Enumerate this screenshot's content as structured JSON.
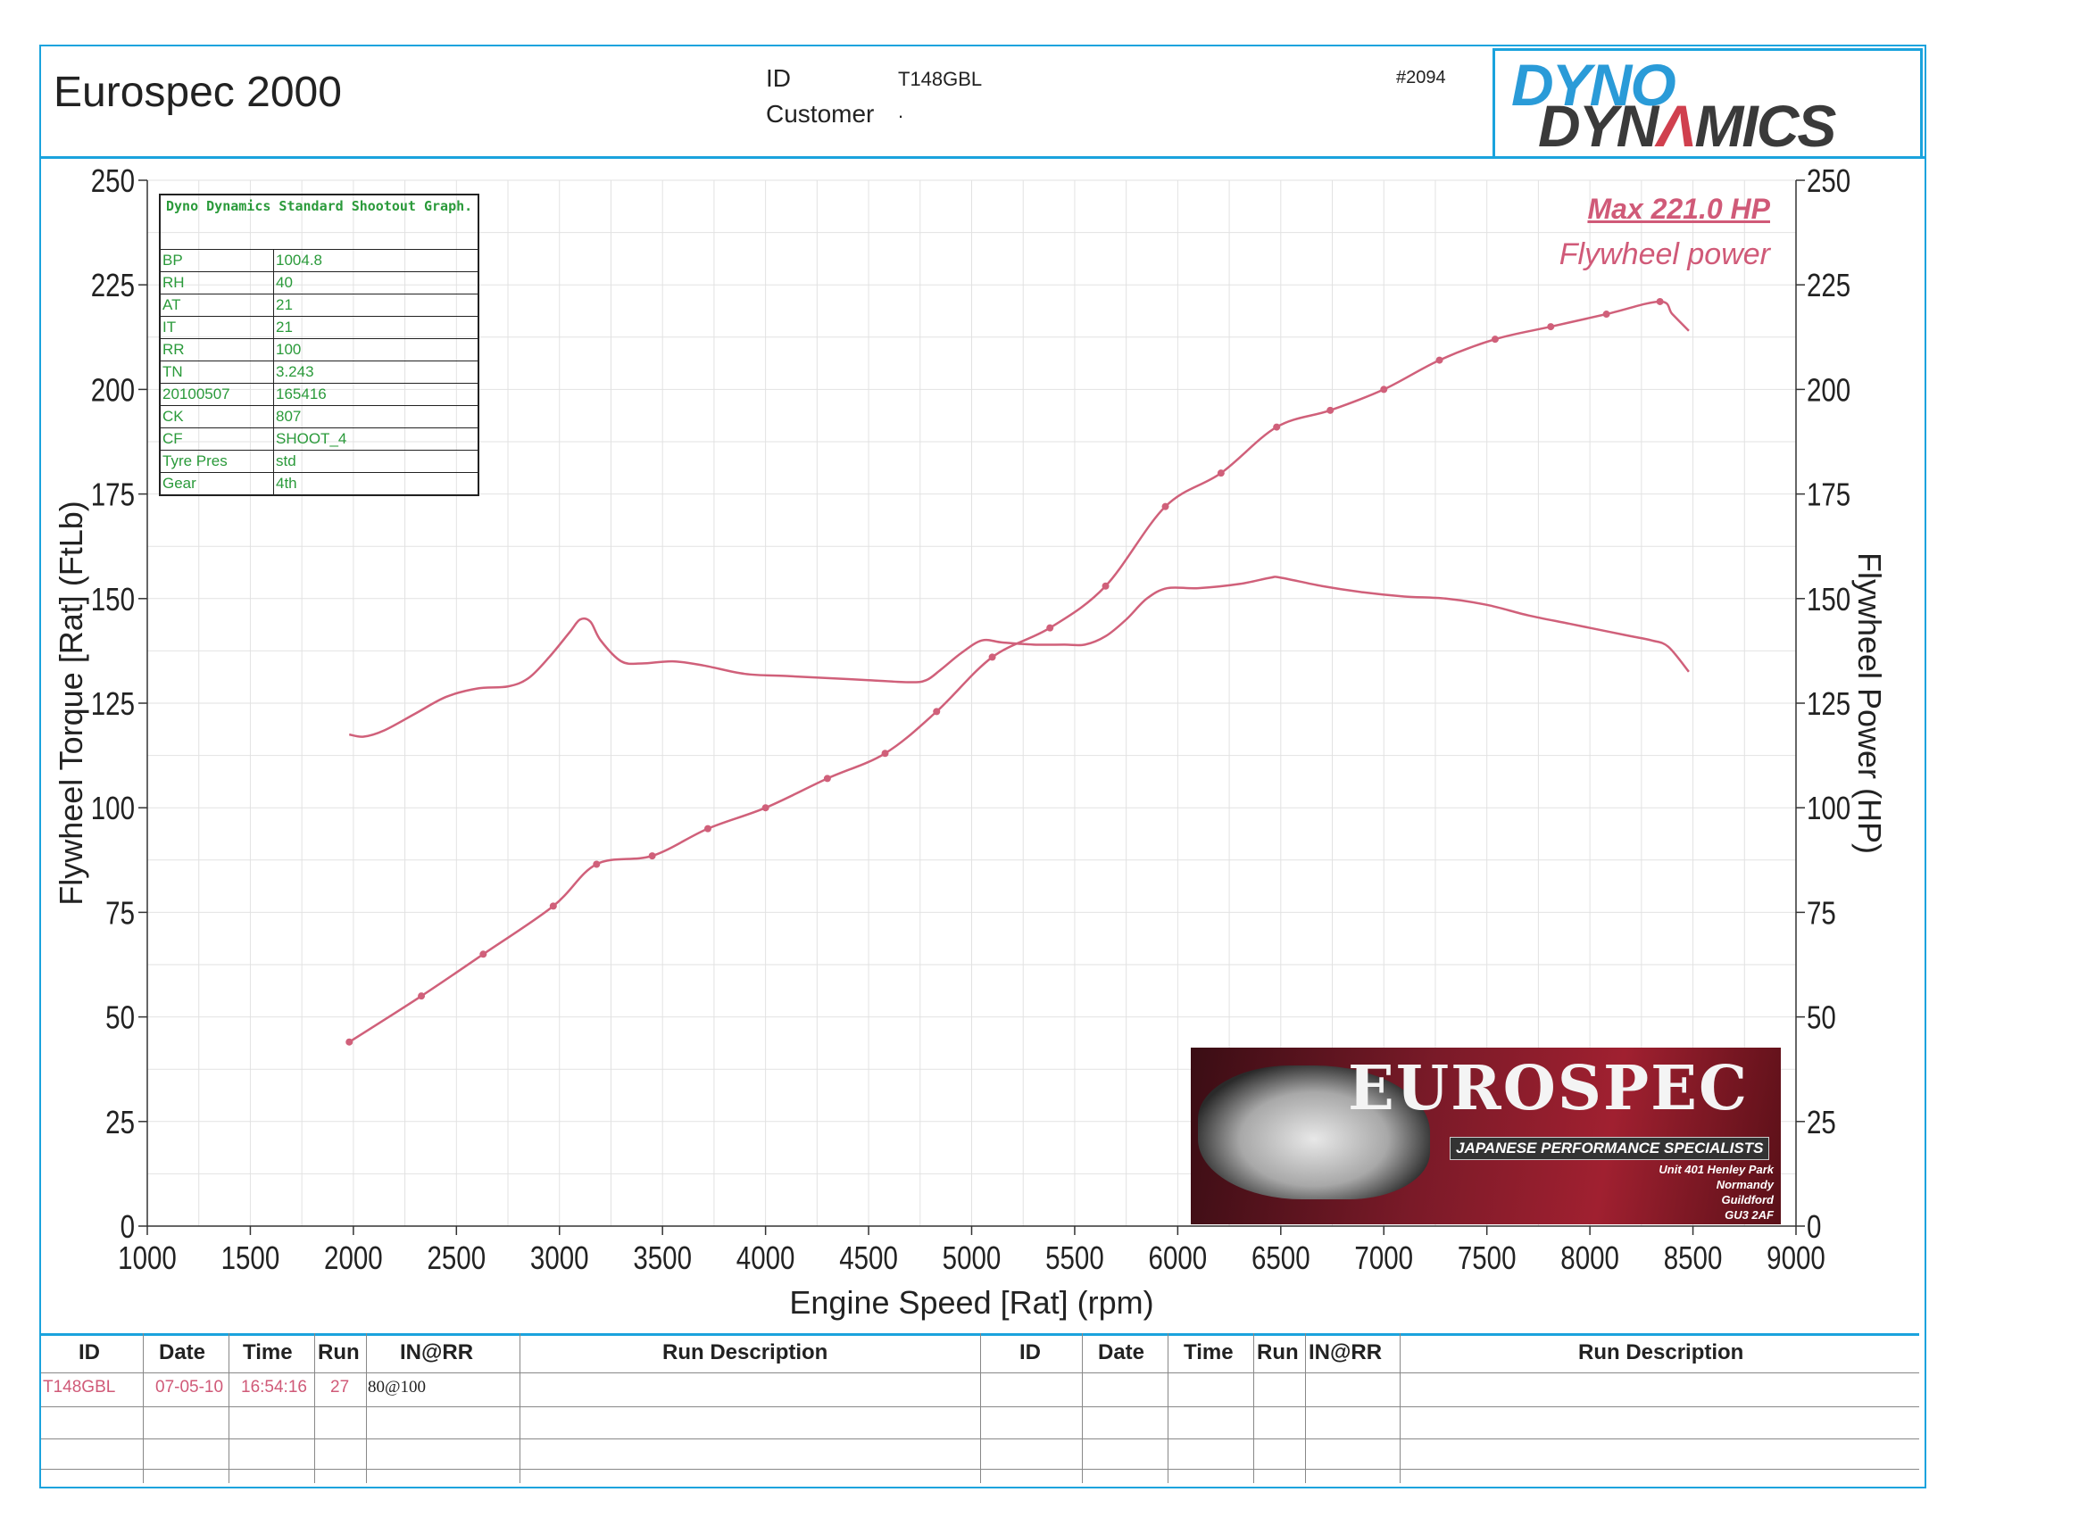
{
  "header": {
    "title": "Eurospec 2000",
    "id_label": "ID",
    "id_value": "T148GBL",
    "customer_label": "Customer",
    "customer_value": ".",
    "run_number": "#2094",
    "logo_line1": "DYNO",
    "logo_line2_a": "DYN",
    "logo_line2_b": "MICS"
  },
  "info_table": {
    "caption": "Dyno Dynamics Standard Shootout Graph.",
    "rows": [
      [
        "BP",
        "1004.8"
      ],
      [
        "RH",
        "40"
      ],
      [
        "AT",
        "21"
      ],
      [
        "IT",
        "21"
      ],
      [
        "RR",
        "100"
      ],
      [
        "TN",
        "3.243"
      ],
      [
        "20100507",
        "165416"
      ],
      [
        "CK",
        "807"
      ],
      [
        "CF",
        "SHOOT_4"
      ],
      [
        "Tyre Pres",
        "std"
      ],
      [
        "Gear",
        "4th"
      ]
    ]
  },
  "annotations": {
    "max": "Max 221.0 HP",
    "series_label": "Flywheel power"
  },
  "banner": {
    "brand": "EUROSPEC",
    "tagline": "JAPANESE PERFORMANCE SPECIALISTS",
    "address": [
      "Unit 401 Henley Park",
      "Normandy",
      "Guildford",
      "GU3 2AF"
    ]
  },
  "runs_table": {
    "headers": [
      "ID",
      "Date",
      "Time",
      "Run",
      "IN@RR",
      "Run Description",
      "ID",
      "Date",
      "Time",
      "Run",
      "IN@RR",
      "Run Description"
    ],
    "row": [
      "T148GBL",
      "07-05-10",
      "16:54:16",
      "27",
      "80@100",
      ""
    ]
  },
  "colors": {
    "curve": "#d0607a",
    "frame": "#1aa3dd",
    "grid": "#e2e2e2"
  },
  "chart_data": {
    "type": "line",
    "xlabel": "Engine Speed [Rat] (rpm)",
    "ylabel": "Flywheel Torque [Rat] (FtLb)",
    "y2label": "Flywheel Power (HP)",
    "xlim": [
      1000,
      9000
    ],
    "ylim": [
      0,
      250
    ],
    "y2lim": [
      0,
      250
    ],
    "xticks": [
      1000,
      1500,
      2000,
      2500,
      3000,
      3500,
      4000,
      4500,
      5000,
      5500,
      6000,
      6500,
      7000,
      7500,
      8000,
      8500,
      9000
    ],
    "yticks": [
      0,
      25,
      50,
      75,
      100,
      125,
      150,
      175,
      200,
      225,
      250
    ],
    "grid": true,
    "series": [
      {
        "name": "Flywheel Torque",
        "axis": "left",
        "markers": false,
        "x": [
          1980,
          2050,
          2150,
          2300,
          2450,
          2600,
          2750,
          2850,
          2950,
          3050,
          3100,
          3150,
          3200,
          3300,
          3400,
          3550,
          3700,
          3900,
          4100,
          4300,
          4500,
          4700,
          4780,
          4850,
          4950,
          5050,
          5150,
          5300,
          5450,
          5550,
          5650,
          5750,
          5850,
          5950,
          6100,
          6300,
          6450,
          6500,
          6700,
          6900,
          7100,
          7300,
          7500,
          7700,
          7900,
          8100,
          8200,
          8300,
          8380,
          8480
        ],
        "y": [
          117.5,
          117,
          118.5,
          122.5,
          126.5,
          128.5,
          129,
          131,
          136,
          142,
          145,
          144.5,
          140,
          135,
          134.5,
          135,
          134,
          132,
          131.5,
          131,
          130.5,
          130,
          130.5,
          133,
          137,
          140,
          139.5,
          139,
          139,
          139,
          141,
          145,
          150,
          152.5,
          152.5,
          153.5,
          155,
          155,
          153,
          151.5,
          150.5,
          150,
          148.5,
          146,
          144,
          142,
          141,
          140,
          138.5,
          132.5
        ]
      },
      {
        "name": "Flywheel Power",
        "axis": "right",
        "markers": true,
        "x": [
          1980,
          2330,
          2630,
          2970,
          3180,
          3450,
          3720,
          4000,
          4300,
          4580,
          4830,
          5100,
          5380,
          5650,
          5940,
          6210,
          6480,
          6740,
          7000,
          7270,
          7540,
          7810,
          8080,
          8340,
          8400,
          8480
        ],
        "y": [
          44,
          55,
          65,
          76.5,
          86.5,
          88.5,
          95,
          100,
          107,
          113,
          123,
          136,
          143,
          153,
          172,
          180,
          191,
          195,
          200,
          207,
          212,
          215,
          218,
          221,
          218,
          214
        ]
      }
    ]
  }
}
